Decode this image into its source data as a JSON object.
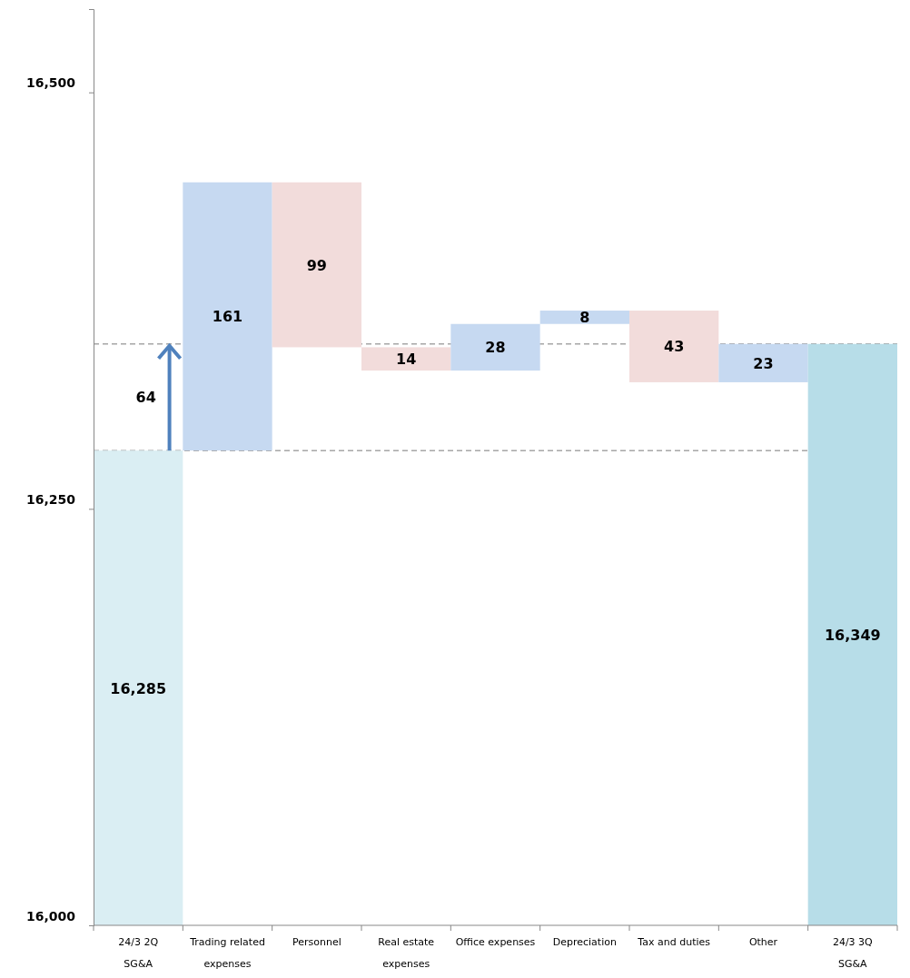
{
  "chart_data": {
    "type": "bar",
    "categories": [
      "24/3  2Q\nSG&A",
      "Trading related\nexpenses",
      "Personnel",
      "Real estate\nexpenses",
      "Office expenses",
      "Depreciation",
      "Tax and duties",
      "Other",
      "24/3  3Q\nSG&A"
    ],
    "values": [
      16285,
      161,
      -99,
      -14,
      28,
      8,
      -43,
      23,
      16349
    ],
    "base": [
      null,
      16285,
      16446,
      16347,
      16333,
      16361,
      16369,
      16326,
      null
    ],
    "colors": [
      "#daeef3",
      "#c6d9f1",
      "#f2dcdb",
      "#f2dcdb",
      "#c6d9f1",
      "#c6d9f1",
      "#f2dcdb",
      "#c6d9f1",
      "#b7dde8"
    ],
    "value_labels": [
      "16,285",
      "161",
      "99",
      "14",
      "28",
      "8",
      "43",
      "23",
      "16,349"
    ],
    "ylim": [
      16000,
      16550
    ],
    "yticks": [
      {
        "value": 16000,
        "label": "16,000"
      },
      {
        "value": 16250,
        "label": "16,250"
      },
      {
        "value": 16500,
        "label": "16,500"
      }
    ],
    "ref_lines": [
      {
        "axis": "y",
        "value": 16285,
        "color": "#a6a6a6",
        "line_style": "dashed"
      },
      {
        "axis": "y",
        "value": 16349,
        "color": "#a6a6a6",
        "line_style": "dashed"
      }
    ],
    "annotations": [
      "64"
    ],
    "grid": false
  }
}
